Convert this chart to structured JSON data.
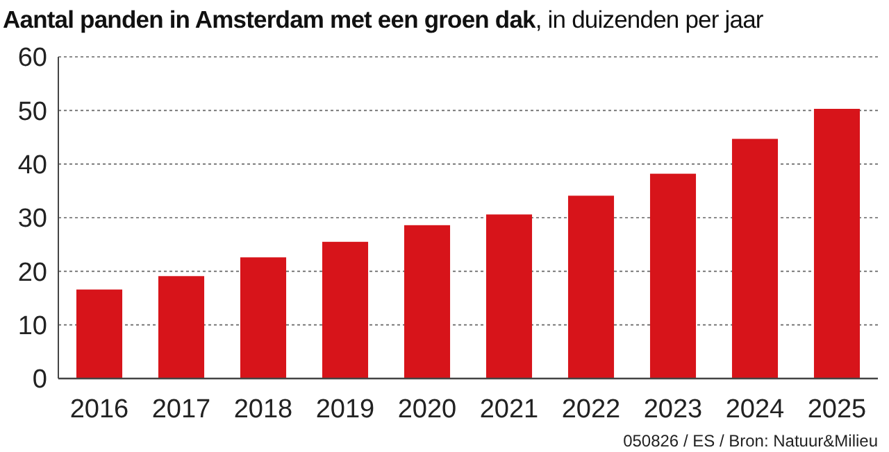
{
  "chart_data": {
    "type": "bar",
    "title": "Aantal panden in Amsterdam met een groen dak",
    "subtitle": ", in duizenden per jaar",
    "categories": [
      "2016",
      "2017",
      "2018",
      "2019",
      "2020",
      "2021",
      "2022",
      "2023",
      "2024",
      "2025"
    ],
    "values": [
      16.6,
      19.1,
      22.6,
      25.5,
      28.6,
      30.6,
      34.1,
      38.2,
      44.7,
      50.3
    ],
    "color": "#d7141a",
    "ylim": [
      0,
      60
    ],
    "yticks": [
      0,
      10,
      20,
      30,
      40,
      50,
      60
    ],
    "grid": "y",
    "annotations": [
      "050826 / ES / Bron: Natuur&Milieu"
    ]
  }
}
